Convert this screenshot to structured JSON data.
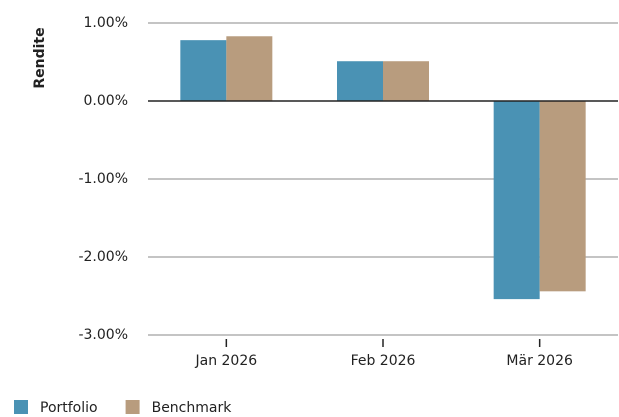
{
  "chart_data": {
    "type": "bar",
    "y_label": "Rendite",
    "categories": [
      "Jan 2026",
      "Feb 2026",
      "Mär 2026"
    ],
    "series": [
      {
        "name": "Portfolio",
        "color": "#4a92b4",
        "values": [
          0.78,
          0.51,
          -2.54
        ]
      },
      {
        "name": "Benchmark",
        "color": "#b89c7e",
        "values": [
          0.83,
          0.51,
          -2.44
        ]
      }
    ],
    "ylim": [
      -3,
      1
    ],
    "yticks": [
      {
        "value": 1,
        "label": "1.00%"
      },
      {
        "value": 0,
        "label": "0.00%"
      },
      {
        "value": -1,
        "label": "-1.00%"
      },
      {
        "value": -2,
        "label": "-2.00%"
      },
      {
        "value": -3,
        "label": "-3.00%"
      }
    ],
    "grid": true,
    "legend": "bottom-left"
  }
}
